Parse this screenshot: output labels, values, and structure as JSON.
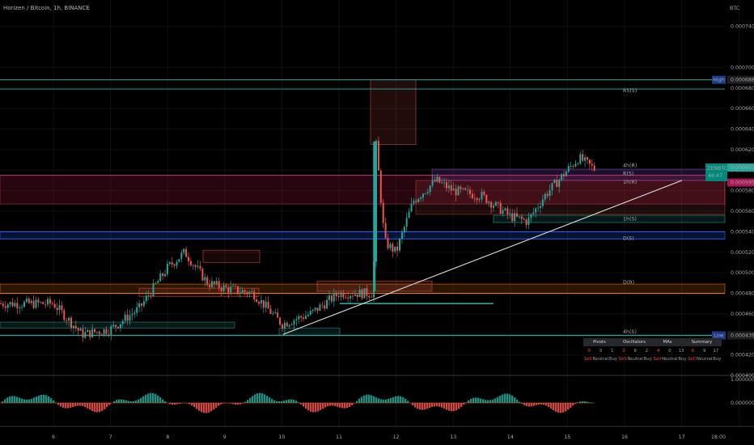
{
  "header": {
    "title": "Horizen / Bitcoin, 1h, BINANCE"
  },
  "axis": {
    "currency": "BTC",
    "price_ticks": [
      "0.000740",
      "0.000700",
      "0.000680",
      "0.000660",
      "0.000640",
      "0.000620",
      "0.000600",
      "0.000580",
      "0.000560",
      "0.000540",
      "0.000520",
      "0.000500",
      "0.000480",
      "0.000460",
      "0.000440",
      "0.000420",
      "0.000400"
    ],
    "time_ticks": [
      "6",
      "7",
      "8",
      "9",
      "10",
      "11",
      "12",
      "13",
      "14",
      "15",
      "16",
      "17",
      "18:00"
    ],
    "high_label": "High",
    "high_value": "0.000688",
    "low_label": "Low",
    "low_value": "0.000439",
    "last_symbol": "ZENBTC",
    "last_value": "0.000601",
    "countdown": "46:47",
    "level_value_595": "0.000595"
  },
  "osc_axis": {
    "ticks": [
      "1.000000",
      "0.000000"
    ]
  },
  "level_labels": {
    "r5": "R5(5)",
    "r4": "4h(R)",
    "r3": "R(5)",
    "s1": "1h(R)",
    "s2": "1h(S)",
    "s3": "D(S)",
    "d": "D(R)",
    "s4": "4h(S)"
  },
  "summary_table": {
    "groups": [
      "Pivots",
      "Oscillators",
      "MAs",
      "Summary"
    ],
    "counts": {
      "pivots": [
        "0",
        "3",
        "1"
      ],
      "oscillators": [
        "3",
        "8",
        "2"
      ],
      "mas": [
        "4",
        "0",
        "13"
      ],
      "summary": [
        "6",
        "9",
        "17"
      ]
    },
    "labels": [
      "Sell",
      "Neutral",
      "Buy"
    ]
  },
  "colors": {
    "bg": "#000000",
    "up": "#26a69a",
    "down": "#ef5350",
    "grid": "#101010",
    "high_line": "#26a69a",
    "blue_line": "#2962ff",
    "orange_line": "#f57c00",
    "trend_line": "#d0d0d0"
  },
  "chart_data": {
    "type": "candlestick",
    "title": "Horizen / Bitcoin, 1h, BINANCE",
    "y_axis_label": "BTC",
    "ylim": [
      0.0004,
      0.00075
    ],
    "high": 0.000688,
    "low": 0.000439,
    "last": 0.000601,
    "trend_line": {
      "from": 0.00044,
      "to": 0.00059
    },
    "horizontal_levels": [
      0.000688,
      0.000679,
      0.000601,
      0.000595,
      0.00059,
      0.000567,
      0.00054,
      0.000533,
      0.000489,
      0.00048,
      0.000439
    ],
    "price_path": [
      [
        "6",
        0.00047
      ],
      [
        "6.5",
        0.00044
      ],
      [
        "7",
        0.000445
      ],
      [
        "7.5",
        0.000465
      ],
      [
        "8",
        0.000505
      ],
      [
        "8.3",
        0.00052
      ],
      [
        "8.7",
        0.00049
      ],
      [
        "9",
        0.000485
      ],
      [
        "9.5",
        0.00048
      ],
      [
        "10",
        0.00045
      ],
      [
        "10.5",
        0.00046
      ],
      [
        "11",
        0.00048
      ],
      [
        "11.6",
        0.00048
      ],
      [
        "11.65",
        0.000625
      ],
      [
        "11.8",
        0.00053
      ],
      [
        "12",
        0.00052
      ],
      [
        "12.3",
        0.00057
      ],
      [
        "12.7",
        0.00059
      ],
      [
        "13",
        0.00058
      ],
      [
        "13.5",
        0.000575
      ],
      [
        "14",
        0.000555
      ],
      [
        "14.3",
        0.00055
      ],
      [
        "14.6",
        0.000575
      ],
      [
        "15",
        0.0006
      ],
      [
        "15.2",
        0.000612
      ],
      [
        "15.5",
        0.0006
      ]
    ]
  }
}
